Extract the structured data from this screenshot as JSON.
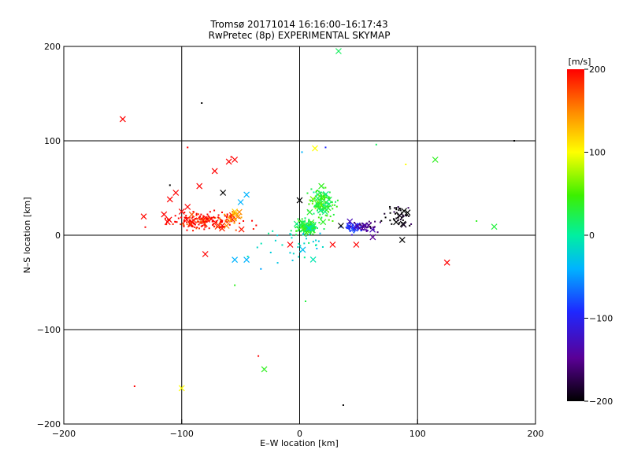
{
  "chart_data": {
    "type": "scatter",
    "title": "Tromsø 20171014 16:16:00–16:17:43",
    "subtitle": "RwPretec (8p) EXPERIMENTAL SKYMAP",
    "xlabel": "E–W location [km]",
    "ylabel": "N–S location [km]",
    "xlim": [
      -200,
      200
    ],
    "ylim": [
      -200,
      200
    ],
    "xticks": [
      -200,
      -100,
      0,
      100,
      200
    ],
    "yticks": [
      -200,
      -100,
      0,
      100,
      200
    ],
    "xtick_labels": [
      "−200",
      "−100",
      "0",
      "100",
      "200"
    ],
    "ytick_labels": [
      "−200",
      "−100",
      "0",
      "100",
      "200"
    ],
    "grid": true,
    "colorbar": {
      "label": "[m/s]",
      "range": [
        -200,
        200
      ],
      "ticks": [
        200,
        100,
        0,
        -100,
        -200
      ],
      "tick_labels": [
        "200",
        "100",
        "0",
        "−100",
        "−200"
      ],
      "colormap": "rainbow (black-purple-blue-cyan-green-yellow-orange-red)"
    },
    "marker_types": [
      "dot",
      "x"
    ],
    "clusters": [
      {
        "center": [
          -80,
          15
        ],
        "spread": [
          25,
          7
        ],
        "velocity": 195,
        "count": 180
      },
      {
        "center": [
          -58,
          18
        ],
        "spread": [
          8,
          6
        ],
        "velocity": 150,
        "count": 30
      },
      {
        "center": [
          5,
          8
        ],
        "spread": [
          8,
          6
        ],
        "velocity": 30,
        "count": 150
      },
      {
        "center": [
          20,
          35
        ],
        "spread": [
          10,
          12
        ],
        "velocity": 35,
        "count": 130
      },
      {
        "center": [
          45,
          8
        ],
        "spread": [
          7,
          4
        ],
        "velocity": -100,
        "count": 40
      },
      {
        "center": [
          55,
          8
        ],
        "spread": [
          9,
          5
        ],
        "velocity": -150,
        "count": 40
      },
      {
        "center": [
          85,
          20
        ],
        "spread": [
          10,
          10
        ],
        "velocity": -200,
        "count": 50
      },
      {
        "center": [
          0,
          -10
        ],
        "spread": [
          25,
          20
        ],
        "velocity": -20,
        "count": 40
      }
    ],
    "points": [
      {
        "x": -150,
        "y": 123,
        "v": 200,
        "m": "x"
      },
      {
        "x": -83,
        "y": 140,
        "v": -200,
        "m": "dot"
      },
      {
        "x": 33,
        "y": 195,
        "v": 20,
        "m": "x"
      },
      {
        "x": 182,
        "y": 100,
        "v": -200,
        "m": "dot"
      },
      {
        "x": 115,
        "y": 80,
        "v": 40,
        "m": "x"
      },
      {
        "x": 165,
        "y": 9,
        "v": 30,
        "m": "x"
      },
      {
        "x": 150,
        "y": 15,
        "v": 40,
        "m": "dot"
      },
      {
        "x": 125,
        "y": -29,
        "v": 200,
        "m": "x"
      },
      {
        "x": 13,
        "y": 92,
        "v": 100,
        "m": "x"
      },
      {
        "x": 65,
        "y": 96,
        "v": 20,
        "m": "dot"
      },
      {
        "x": -55,
        "y": 80,
        "v": 200,
        "m": "x"
      },
      {
        "x": -72,
        "y": 68,
        "v": 200,
        "m": "x"
      },
      {
        "x": -60,
        "y": 78,
        "v": 200,
        "m": "x"
      },
      {
        "x": -105,
        "y": 45,
        "v": 200,
        "m": "x"
      },
      {
        "x": -110,
        "y": 38,
        "v": 200,
        "m": "x"
      },
      {
        "x": -85,
        "y": 52,
        "v": 200,
        "m": "x"
      },
      {
        "x": -65,
        "y": 45,
        "v": -200,
        "m": "x"
      },
      {
        "x": -45,
        "y": 43,
        "v": -40,
        "m": "x"
      },
      {
        "x": -55,
        "y": -26,
        "v": -40,
        "m": "x"
      },
      {
        "x": -45,
        "y": -26,
        "v": -40,
        "m": "x"
      },
      {
        "x": -80,
        "y": -20,
        "v": 200,
        "m": "x"
      },
      {
        "x": 0,
        "y": 37,
        "v": -200,
        "m": "x"
      },
      {
        "x": -8,
        "y": -10,
        "v": 200,
        "m": "x"
      },
      {
        "x": 28,
        "y": -10,
        "v": 200,
        "m": "x"
      },
      {
        "x": 48,
        "y": -10,
        "v": 200,
        "m": "x"
      },
      {
        "x": 62,
        "y": -2,
        "v": -150,
        "m": "x"
      },
      {
        "x": 87,
        "y": -5,
        "v": -200,
        "m": "x"
      },
      {
        "x": 35,
        "y": 10,
        "v": -200,
        "m": "x"
      },
      {
        "x": 42,
        "y": 10,
        "v": -100,
        "m": "x"
      },
      {
        "x": -140,
        "y": -160,
        "v": 200,
        "m": "dot"
      },
      {
        "x": -100,
        "y": -162,
        "v": 100,
        "m": "x"
      },
      {
        "x": -35,
        "y": -128,
        "v": 200,
        "m": "dot"
      },
      {
        "x": -30,
        "y": -142,
        "v": 40,
        "m": "x"
      },
      {
        "x": 37,
        "y": -180,
        "v": -200,
        "m": "dot"
      },
      {
        "x": 5,
        "y": -70,
        "v": 30,
        "m": "dot"
      },
      {
        "x": -55,
        "y": -53,
        "v": 40,
        "m": "dot"
      },
      {
        "x": 90,
        "y": 75,
        "v": 100,
        "m": "dot"
      },
      {
        "x": 2,
        "y": 88,
        "v": -40,
        "m": "dot"
      },
      {
        "x": 22,
        "y": 93,
        "v": -100,
        "m": "dot"
      },
      {
        "x": -110,
        "y": 53,
        "v": -200,
        "m": "dot"
      },
      {
        "x": -95,
        "y": 93,
        "v": 200,
        "m": "dot"
      },
      {
        "x": -58,
        "y": 83,
        "v": 200,
        "m": "dot"
      },
      {
        "x": -50,
        "y": 35,
        "v": -40,
        "m": "x"
      },
      {
        "x": -100,
        "y": 25,
        "v": 200,
        "m": "x"
      },
      {
        "x": -115,
        "y": 22,
        "v": 200,
        "m": "x"
      },
      {
        "x": -112,
        "y": 14,
        "v": 200,
        "m": "x"
      },
      {
        "x": -95,
        "y": 30,
        "v": 200,
        "m": "x"
      },
      {
        "x": -62,
        "y": 10,
        "v": 150,
        "m": "x"
      },
      {
        "x": -52,
        "y": 20,
        "v": 150,
        "m": "x"
      },
      {
        "x": -55,
        "y": 25,
        "v": 120,
        "m": "x"
      }
    ]
  }
}
